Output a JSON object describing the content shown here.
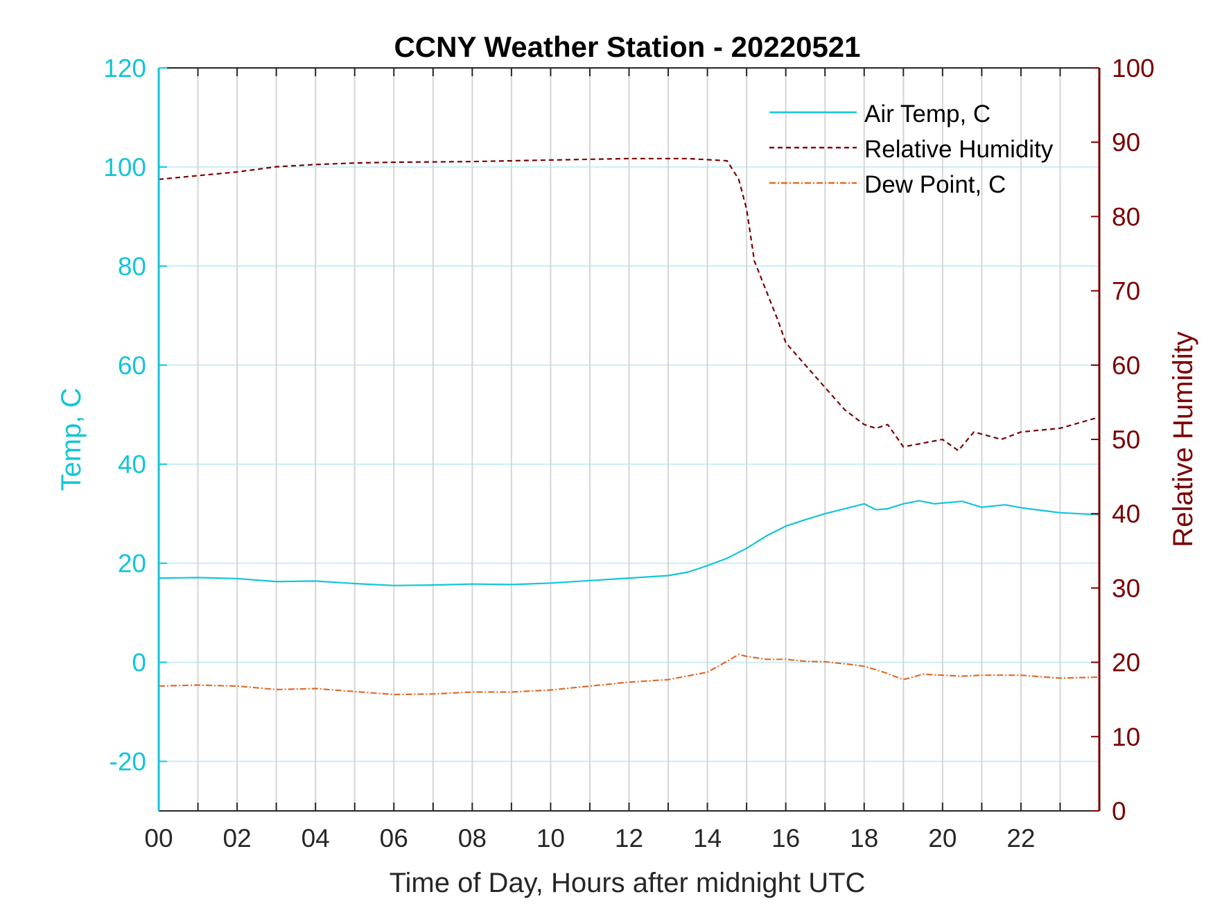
{
  "chart_data": {
    "type": "line",
    "title": "CCNY Weather Station - 20220521",
    "xlabel": "Time of Day, Hours after midnight UTC",
    "ylabel_left": "Temp, C",
    "ylabel_right": "Relative Humidity",
    "xlim": [
      0,
      24
    ],
    "ylim_left": [
      -30,
      120
    ],
    "ylim_right": [
      0,
      100
    ],
    "x_ticks": [
      0,
      2,
      4,
      6,
      8,
      10,
      12,
      14,
      16,
      18,
      20,
      22
    ],
    "x_tick_labels": [
      "00",
      "02",
      "04",
      "06",
      "08",
      "10",
      "12",
      "14",
      "16",
      "18",
      "20",
      "22"
    ],
    "y_left_ticks": [
      -20,
      0,
      20,
      40,
      60,
      80,
      100,
      120
    ],
    "y_left_tick_labels": [
      "-20",
      "0",
      "20",
      "40",
      "60",
      "80",
      "100",
      "120"
    ],
    "y_right_ticks": [
      0,
      10,
      20,
      30,
      40,
      50,
      60,
      70,
      80,
      90,
      100
    ],
    "y_right_tick_labels": [
      "0",
      "10",
      "20",
      "30",
      "40",
      "50",
      "60",
      "70",
      "80",
      "90",
      "100"
    ],
    "grid": "vertical every hour, horizontal at left-axis ticks",
    "legend_position": "top-right",
    "colors": {
      "left_axis": "#12c5d9",
      "right_axis": "#7a0000",
      "dew_point": "#e06a28",
      "grid": "#d5d5d5",
      "hgrid": "#c9eef5"
    },
    "series": [
      {
        "name": "Air Temp, C",
        "axis": "left",
        "style": "solid",
        "color": "#12c5d9",
        "x": [
          0,
          1,
          2,
          3,
          4,
          5,
          6,
          7,
          8,
          9,
          10,
          11,
          12,
          13,
          13.5,
          14,
          14.5,
          15,
          15.5,
          16,
          16.5,
          17,
          17.5,
          18,
          18.3,
          18.6,
          19,
          19.4,
          19.8,
          20.5,
          21,
          21.6,
          22,
          23,
          24
        ],
        "values": [
          17,
          17.1,
          16.9,
          16.3,
          16.4,
          15.9,
          15.5,
          15.6,
          15.8,
          15.7,
          16,
          16.5,
          17,
          17.5,
          18.2,
          19.5,
          21,
          23,
          25.5,
          27.5,
          28.8,
          30,
          31,
          32,
          30.8,
          31,
          32,
          32.6,
          32,
          32.5,
          31.3,
          31.8,
          31.2,
          30.2,
          29.8
        ]
      },
      {
        "name": "Relative Humidity",
        "axis": "right",
        "style": "dashed",
        "color": "#7a0000",
        "x": [
          0,
          1,
          2,
          3,
          4,
          5,
          6,
          8,
          10,
          12,
          13.5,
          14.5,
          14.8,
          15,
          15.2,
          15.5,
          15.8,
          16,
          16.5,
          17,
          17.5,
          18,
          18.3,
          18.6,
          19,
          19.5,
          20,
          20.4,
          20.8,
          21.5,
          22,
          23,
          24
        ],
        "values": [
          85,
          85.5,
          86,
          86.7,
          87,
          87.2,
          87.3,
          87.4,
          87.6,
          87.8,
          87.8,
          87.5,
          85,
          81,
          74,
          70,
          66,
          63,
          60,
          57,
          54,
          52,
          51.5,
          52,
          49,
          49.5,
          50,
          48.5,
          51,
          50,
          51,
          51.5,
          53
        ]
      },
      {
        "name": "Dew Point, C",
        "axis": "left",
        "style": "dash-dot",
        "color": "#e06a28",
        "x": [
          0,
          1,
          2,
          3,
          4,
          5,
          6,
          7,
          8,
          9,
          10,
          11,
          12,
          13,
          14,
          14.5,
          14.8,
          15,
          15.5,
          16,
          16.5,
          17,
          17.5,
          18,
          18.5,
          19,
          19.5,
          20,
          20.5,
          21,
          22,
          23,
          24
        ],
        "values": [
          -4.8,
          -4.6,
          -4.8,
          -5.5,
          -5.3,
          -5.9,
          -6.5,
          -6.4,
          -6.0,
          -6.0,
          -5.6,
          -4.8,
          -4.0,
          -3.5,
          -2.0,
          0.2,
          1.6,
          1.2,
          0.6,
          0.6,
          0.2,
          0.1,
          -0.3,
          -0.8,
          -2.0,
          -3.5,
          -2.4,
          -2.6,
          -2.8,
          -2.6,
          -2.6,
          -3.2,
          -3.0
        ]
      }
    ]
  }
}
